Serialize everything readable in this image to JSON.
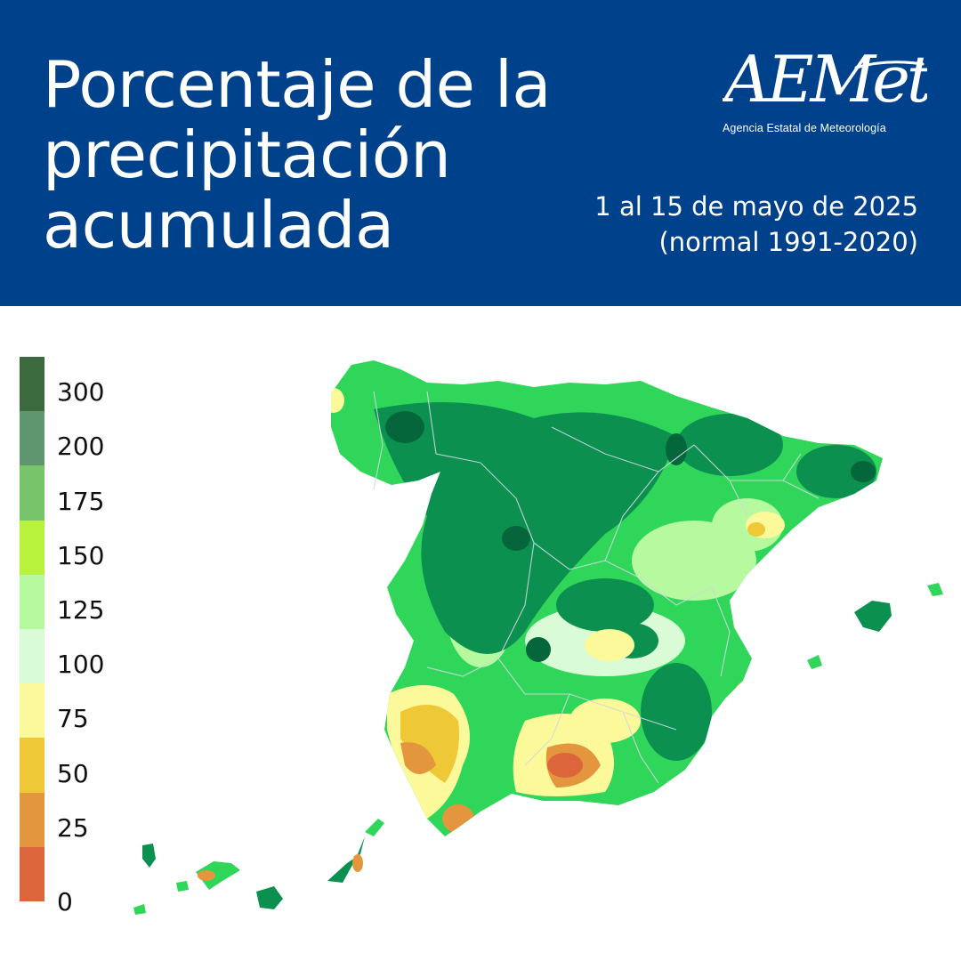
{
  "header": {
    "title_lines": [
      "Porcentaje de la",
      "precipitación",
      "acumulada"
    ],
    "logo_text": "AEMet",
    "logo_subtitle": "Agencia Estatal de Meteorología",
    "period_lines": [
      "1 al 15 de mayo de 2025",
      "(normal 1991-2020)"
    ],
    "background_color": "#00418b"
  },
  "legend": {
    "colors": [
      "#3b6a3f",
      "#5f9670",
      "#78c46a",
      "#b9f23c",
      "#b6f99e",
      "#d9fcd6",
      "#fcf99a",
      "#efc838",
      "#e3963d",
      "#dd653c"
    ],
    "labels": [
      "300",
      "200",
      "175",
      "150",
      "125",
      "100",
      "75",
      "50",
      "25",
      "0"
    ]
  }
}
